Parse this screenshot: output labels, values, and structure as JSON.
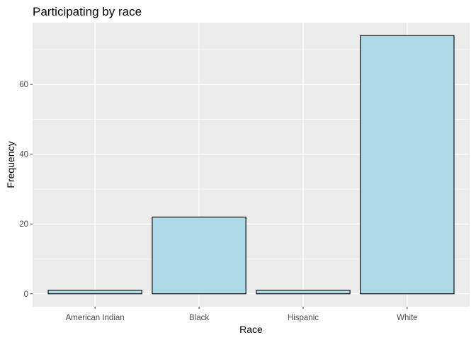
{
  "chart_data": {
    "type": "bar",
    "title": "Participating by race",
    "xlabel": "Race",
    "ylabel": "Frequency",
    "categories": [
      "American Indian",
      "Black",
      "Hispanic",
      "White"
    ],
    "values": [
      1,
      22,
      1,
      74
    ],
    "yticks": [
      0,
      20,
      40,
      60
    ],
    "ylim": [
      -3.7,
      77.7
    ],
    "grid": true,
    "legend": "none",
    "colors": {
      "bar_fill": "#add8e6",
      "bar_stroke": "#000000",
      "panel_bg": "#ebebeb",
      "grid_major": "#ffffff",
      "tick_text": "#4d4d4d"
    }
  }
}
